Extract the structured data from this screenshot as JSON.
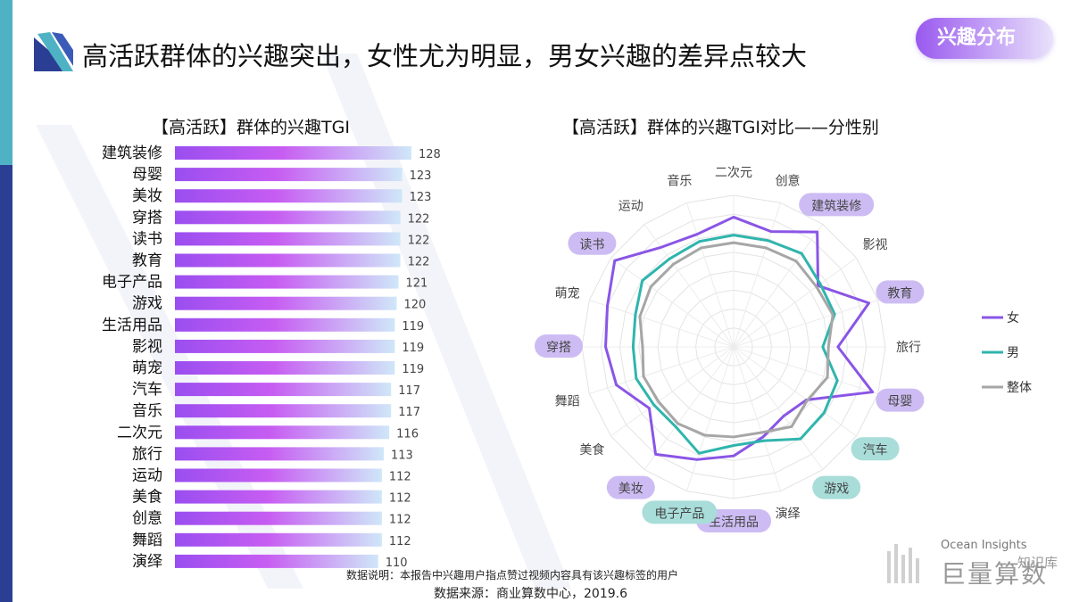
{
  "header": {
    "title": "高活跃群体的兴趣突出，女性尤为明显，男女兴趣的差异点较大",
    "badge": "兴趣分布"
  },
  "colors": {
    "female": "#8a55e6",
    "male": "#2fb5ad",
    "overall": "#a6a6a6",
    "bar_start": "#9a4ef0",
    "bar_mid": "#c75df2",
    "bar_end": "#cfe7f8",
    "tag_female": "#cdbcf3",
    "tag_male": "#a8ddd9"
  },
  "chart_data": [
    {
      "type": "bar",
      "orientation": "horizontal",
      "title": "【高活跃】群体的兴趣TGI",
      "categories": [
        "建筑装修",
        "母婴",
        "美妆",
        "穿搭",
        "读书",
        "教育",
        "电子产品",
        "游戏",
        "生活用品",
        "影视",
        "萌宠",
        "汽车",
        "音乐",
        "二次元",
        "旅行",
        "运动",
        "美食",
        "创意",
        "舞蹈",
        "演绎"
      ],
      "values": [
        128,
        123,
        123,
        122,
        122,
        122,
        121,
        120,
        119,
        119,
        119,
        117,
        117,
        116,
        113,
        112,
        112,
        112,
        112,
        110
      ],
      "xlim": [
        0,
        128
      ],
      "grid": false
    },
    {
      "type": "radar",
      "title": "【高活跃】群体的兴趣TGI对比——分性别",
      "axes": [
        "二次元",
        "创意",
        "建筑装修",
        "影视",
        "教育",
        "旅行",
        "母婴",
        "汽车",
        "游戏",
        "演绎",
        "生活用品",
        "电子产品",
        "美妆",
        "美食",
        "舞蹈",
        "穿搭",
        "萌宠",
        "读书",
        "运动",
        "音乐"
      ],
      "highlight_female": [
        "建筑装修",
        "教育",
        "母婴",
        "生活用品",
        "美妆",
        "穿搭",
        "读书"
      ],
      "highlight_male": [
        "汽车",
        "游戏",
        "电子产品"
      ],
      "rlim": [
        0,
        160
      ],
      "legend": "right",
      "series": [
        {
          "name": "女",
          "values": [
            137,
            128,
            150,
            110,
            150,
            110,
            154,
            95,
            90,
            100,
            115,
            125,
            140,
            110,
            130,
            135,
            140,
            155,
            130,
            125
          ]
        },
        {
          "name": "男",
          "values": [
            118,
            118,
            122,
            113,
            112,
            94,
            115,
            118,
            120,
            104,
            104,
            118,
            104,
            104,
            108,
            106,
            109,
            119,
            115,
            117
          ]
        },
        {
          "name": "整体",
          "values": [
            110,
            110,
            112,
            108,
            110,
            100,
            104,
            96,
            104,
            95,
            95,
            98,
            100,
            98,
            100,
            96,
            104,
            108,
            108,
            110
          ]
        }
      ]
    }
  ],
  "footer": {
    "note": "数据说明：本报告中兴趣用户指点赞过视频内容具有该兴趣标签的用户",
    "source": "数据来源：商业算数中心，2019.6"
  },
  "branding": {
    "en": "Ocean Insights",
    "cn": "巨量算数",
    "watermark": "知识库"
  }
}
